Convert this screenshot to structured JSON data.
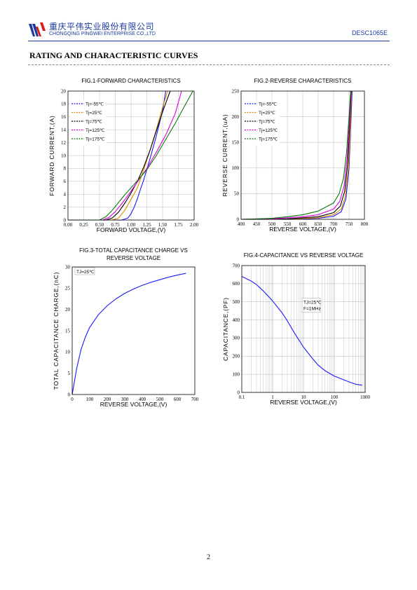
{
  "header": {
    "company_cn": "重庆平伟实业股份有限公司",
    "company_en": "CHONGQING PINGWEI ENTERPRISE CO.,LTD",
    "doc_code": "DESC1065E"
  },
  "section_title": "RATING AND CHARACTERISTIC CURVES",
  "page_number": "2",
  "chart_data": [
    {
      "id": "fig1",
      "type": "line",
      "title": "FIG.1-FORWARD CHARACTERISTICS",
      "xlabel": "FORWARD VOLTAGE,(V)",
      "ylabel": "FORWARD CURRENT,(A)",
      "xlim": [
        0,
        2
      ],
      "ylim": [
        0,
        20
      ],
      "xticks": [
        "0.00",
        "0.25",
        "0.50",
        "0.75",
        "1.00",
        "1.25",
        "1.50",
        "1.75",
        "2.00"
      ],
      "yticks": [
        "0",
        "2",
        "4",
        "6",
        "8",
        "10",
        "12",
        "14",
        "16",
        "18",
        "20"
      ],
      "grid": true,
      "legend_position": "top-left",
      "series": [
        {
          "name": "Tj=-55℃",
          "color": "#1a1aff",
          "x": [
            0,
            0.85,
            0.95,
            1.0,
            1.05,
            1.1,
            1.15,
            1.2,
            1.3,
            1.4,
            1.5,
            1.55
          ],
          "y": [
            0,
            0,
            0.3,
            1.0,
            2.0,
            3.3,
            4.8,
            6.2,
            9.5,
            13.0,
            17.0,
            20.0
          ]
        },
        {
          "name": "Tj=25℃",
          "color": "#e08a00",
          "x": [
            0,
            0.7,
            0.8,
            0.9,
            1.0,
            1.1,
            1.2,
            1.3,
            1.4,
            1.5,
            1.58
          ],
          "y": [
            0,
            0,
            0.3,
            1.5,
            3.2,
            5.0,
            7.8,
            10.8,
            14.0,
            17.5,
            20.0
          ]
        },
        {
          "name": "Tj=75℃",
          "color": "#000000",
          "x": [
            0,
            0.6,
            0.7,
            0.8,
            0.9,
            1.0,
            1.1,
            1.2,
            1.3,
            1.4,
            1.5,
            1.62
          ],
          "y": [
            0,
            0,
            0.3,
            1.2,
            2.6,
            4.2,
            6.0,
            8.2,
            10.8,
            13.8,
            16.8,
            20.0
          ]
        },
        {
          "name": "Tj=125℃",
          "color": "#dd00dd",
          "x": [
            0,
            0.55,
            0.65,
            0.75,
            0.85,
            0.95,
            1.05,
            1.15,
            1.25,
            1.4,
            1.55,
            1.7,
            1.8
          ],
          "y": [
            0,
            0,
            0.4,
            1.3,
            2.5,
            3.8,
            5.2,
            6.6,
            8.0,
            10.5,
            13.2,
            16.5,
            20.0
          ]
        },
        {
          "name": "Tj=175℃",
          "color": "#0a7a0a",
          "x": [
            0,
            0.5,
            0.6,
            0.7,
            0.8,
            0.9,
            1.0,
            1.1,
            1.25,
            1.4,
            1.55,
            1.7,
            1.85,
            1.98
          ],
          "y": [
            0,
            0,
            0.5,
            1.5,
            2.7,
            3.9,
            5.0,
            6.1,
            7.8,
            10.0,
            12.5,
            15.0,
            17.7,
            20.0
          ]
        }
      ]
    },
    {
      "id": "fig2",
      "type": "line",
      "title": "FIG.2-REVERSE CHARACTERISTICS",
      "xlabel": "REVERSE VOLTAGE,(V)",
      "ylabel": "REVERSE CURRENT,(uA)",
      "xlim": [
        400,
        800
      ],
      "ylim": [
        0,
        250
      ],
      "xticks": [
        "400",
        "450",
        "500",
        "550",
        "600",
        "650",
        "700",
        "750",
        "800"
      ],
      "yticks": [
        "0",
        "50",
        "100",
        "150",
        "200",
        "250"
      ],
      "grid": true,
      "legend_position": "top-left",
      "series": [
        {
          "name": "Tj=-55℃",
          "color": "#1a1aff",
          "x": [
            400,
            550,
            650,
            700,
            725,
            740,
            750,
            755,
            760
          ],
          "y": [
            0,
            0.3,
            2,
            6,
            15,
            40,
            100,
            170,
            250
          ]
        },
        {
          "name": "Tj=25℃",
          "color": "#e08a00",
          "x": [
            400,
            550,
            650,
            700,
            725,
            738,
            748,
            754,
            758
          ],
          "y": [
            0,
            0.5,
            3,
            9,
            20,
            45,
            100,
            170,
            250
          ]
        },
        {
          "name": "Tj=75℃",
          "color": "#000000",
          "x": [
            400,
            550,
            650,
            700,
            722,
            736,
            746,
            752,
            757
          ],
          "y": [
            0,
            1,
            5,
            13,
            26,
            55,
            110,
            180,
            250
          ]
        },
        {
          "name": "Tj=125℃",
          "color": "#dd00dd",
          "x": [
            400,
            500,
            600,
            650,
            700,
            720,
            734,
            744,
            751,
            756
          ],
          "y": [
            0,
            1,
            5,
            9,
            20,
            35,
            65,
            120,
            190,
            250
          ]
        },
        {
          "name": "Tj=175℃",
          "color": "#0a7a0a",
          "x": [
            400,
            500,
            550,
            600,
            650,
            700,
            718,
            732,
            742,
            750,
            755
          ],
          "y": [
            0,
            2,
            5,
            9,
            16,
            32,
            50,
            80,
            130,
            200,
            250
          ]
        }
      ]
    },
    {
      "id": "fig3",
      "type": "line",
      "title": "FIG.3-TOTAL CAPACITANCE CHARGE VS",
      "title_line2": "REVERSE VOLTAGE",
      "xlabel": "REVERSE VOLTAGE,(V)",
      "ylabel": "TOTAL CAPACITANCE CHARGE,(nC)",
      "xlim": [
        0,
        700
      ],
      "ylim": [
        0,
        30
      ],
      "xticks": [
        "0",
        "100",
        "200",
        "300",
        "400",
        "500",
        "600",
        "700"
      ],
      "yticks": [
        "0",
        "5",
        "10",
        "15",
        "20",
        "25",
        "30"
      ],
      "grid": false,
      "annotation": "TJ=25℃",
      "series": [
        {
          "color": "#1a1aff",
          "x": [
            0,
            25,
            50,
            75,
            100,
            150,
            200,
            250,
            300,
            350,
            400,
            450,
            500,
            550,
            600,
            650
          ],
          "y": [
            0,
            6,
            10.5,
            13.5,
            15.8,
            18.8,
            20.9,
            22.5,
            23.8,
            24.8,
            25.7,
            26.4,
            27.0,
            27.6,
            28.1,
            28.5
          ]
        }
      ]
    },
    {
      "id": "fig4",
      "type": "line",
      "title": "FIG.4-CAPACITANCE VS REVERSE VOLTAGE",
      "xlabel": "REVERSE VOLTAGE,(V)",
      "ylabel": "CAPACITANCE,(PF)",
      "xscale": "log",
      "xlim": [
        0.1,
        1000
      ],
      "ylim": [
        0,
        700
      ],
      "xticks": [
        "0.1",
        "1",
        "10",
        "100",
        "1000"
      ],
      "yticks": [
        "0",
        "100",
        "200",
        "300",
        "400",
        "500",
        "600",
        "700"
      ],
      "grid": true,
      "annotation": "TJ=25℃",
      "annotation2": "F=1MHz",
      "series": [
        {
          "color": "#1a1aff",
          "x": [
            0.1,
            0.2,
            0.3,
            0.5,
            1,
            2,
            3,
            5,
            10,
            20,
            30,
            50,
            100,
            200,
            300,
            500,
            800
          ],
          "y": [
            640,
            615,
            595,
            560,
            505,
            440,
            395,
            330,
            250,
            185,
            150,
            120,
            90,
            70,
            58,
            45,
            40
          ]
        }
      ]
    }
  ]
}
